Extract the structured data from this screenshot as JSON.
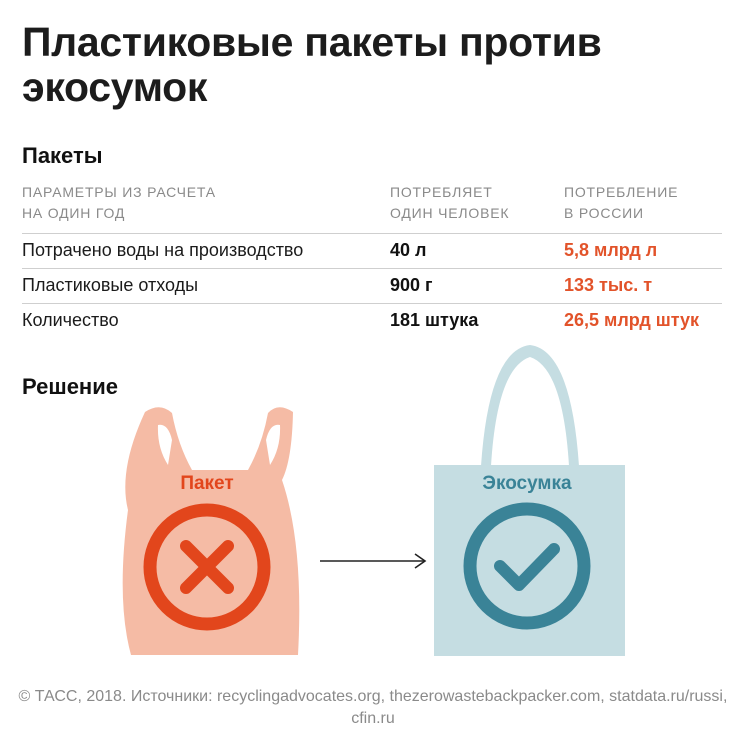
{
  "title": "Пластиковые пакеты против экосумок",
  "sections": {
    "bags_heading": "Пакеты",
    "solution_heading": "Решение"
  },
  "table": {
    "headers": {
      "param": "ПАРАМЕТРЫ ИЗ РАСЧЕТА\nНА ОДИН ГОД",
      "per_person": "ПОТРЕБЛЯЕТ\nОДИН ЧЕЛОВЕК",
      "russia": "ПОТРЕБЛЕНИЕ\nВ РОССИИ"
    },
    "rows": [
      {
        "param": "Потрачено воды на производство",
        "per_person": "40 л",
        "russia": "5,8 млрд л"
      },
      {
        "param": "Пластиковые отходы",
        "per_person": "900 г",
        "russia": "133 тыс. т"
      },
      {
        "param": "Количество",
        "per_person": "181 штука",
        "russia": "26,5 млрд штук"
      }
    ]
  },
  "illustration": {
    "plastic_bag_label": "Пакет",
    "eco_bag_label": "Экосумка",
    "plastic_bag_icon": "cross-icon",
    "eco_bag_icon": "check-icon",
    "arrow_icon": "arrow-right-icon"
  },
  "colors": {
    "plastic_bag": "#f5bba5",
    "plastic_accent": "#e2461c",
    "eco_bag": "#c5dde2",
    "eco_accent": "#3a8397",
    "russia_value": "#e2532a"
  },
  "source": "© ТАСС, 2018. Источники: recyclingadvocates.org, thezerowastebackpacker.com, statdata.ru/russi, cfin.ru"
}
